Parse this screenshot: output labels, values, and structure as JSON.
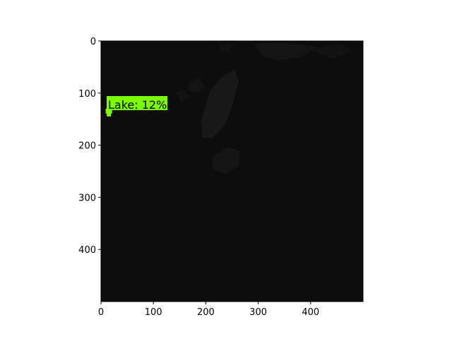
{
  "image": {
    "background_color": "#0d0d0d",
    "terrain_color": "#1b1b1b",
    "extent": {
      "x": [
        0,
        500
      ],
      "y": [
        0,
        500
      ]
    }
  },
  "axes": {
    "x_ticks": [
      0,
      100,
      200,
      300,
      400
    ],
    "y_ticks": [
      0,
      100,
      200,
      300,
      400
    ],
    "y_inverted": true
  },
  "detection": {
    "label": "Lake: 12%",
    "color": "#7cfc00",
    "point": [
      15,
      138
    ]
  }
}
